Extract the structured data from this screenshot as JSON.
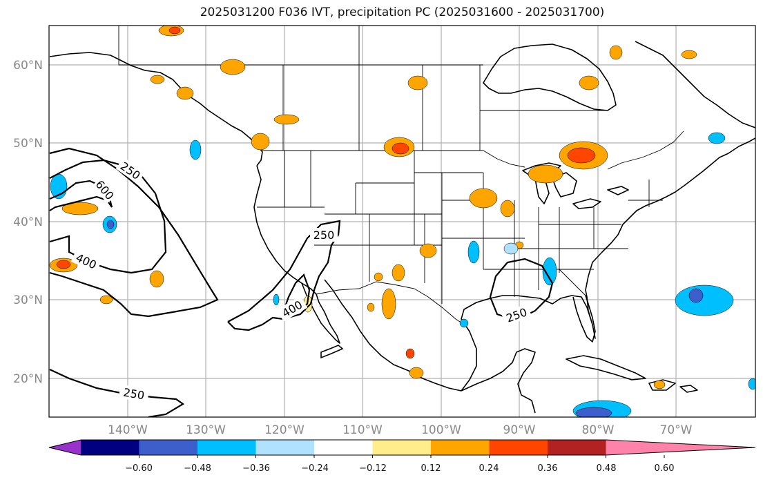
{
  "title": "2025031200 F036 IVT, precipitation PC (2025031600 - 2025031700)",
  "map": {
    "lat_labels": [
      "60°N",
      "50°N",
      "40°N",
      "30°N",
      "20°N"
    ],
    "lon_labels": [
      "140°W",
      "130°W",
      "120°W",
      "110°W",
      "100°W",
      "90°W",
      "80°W",
      "70°W"
    ],
    "ivt_contour_labels": [
      "250",
      "600",
      "400",
      "250",
      "400",
      "250",
      "250"
    ],
    "gridlines": true
  },
  "colorbar": {
    "ticks": [
      "−0.60",
      "−0.48",
      "−0.36",
      "−0.24",
      "−0.12",
      "0.12",
      "0.24",
      "0.36",
      "0.48",
      "0.60"
    ],
    "colors": [
      "#9932cc",
      "#000080",
      "#3c5fcd",
      "#00bfff",
      "#b0e2ff",
      "#ffffff",
      "#ffec8b",
      "#ffa500",
      "#ff4500",
      "#b22222",
      "#ff82ab"
    ],
    "extend": "both"
  }
}
